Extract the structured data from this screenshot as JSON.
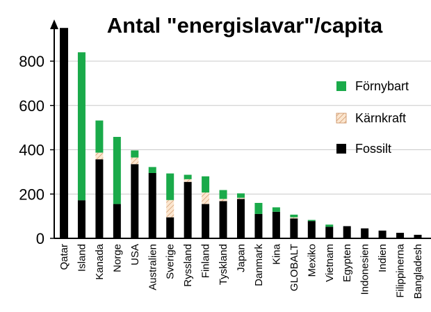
{
  "chart_data": {
    "type": "bar",
    "stacked": true,
    "title": "Antal \"energislavar\"/capita",
    "xlabel": "",
    "ylabel": "",
    "ylim": [
      0,
      950
    ],
    "yticks": [
      0,
      200,
      400,
      600,
      800
    ],
    "grid": true,
    "legend_position": "right",
    "categories": [
      "Qatar",
      "Island",
      "Kanada",
      "Norge",
      "USA",
      "Australien",
      "Sverige",
      "Ryssland",
      "Finland",
      "Tyskland",
      "Japan",
      "Danmark",
      "Kina",
      "GLOBALT",
      "Mexiko",
      "Vietnam",
      "Egypten",
      "Indonesien",
      "Indien",
      "Filippinerna",
      "Bangladesh"
    ],
    "series": [
      {
        "name": "Fossilt",
        "color": "#000000",
        "pattern": "solid",
        "values": [
          950,
          172,
          357,
          155,
          335,
          295,
          95,
          255,
          155,
          168,
          178,
          110,
          120,
          90,
          78,
          52,
          55,
          45,
          35,
          25,
          16
        ]
      },
      {
        "name": "Kärnkraft",
        "color": "#f5d7b8",
        "pattern": "hatch",
        "values": [
          0,
          0,
          30,
          0,
          30,
          0,
          78,
          12,
          52,
          10,
          5,
          0,
          0,
          5,
          0,
          0,
          0,
          0,
          0,
          0,
          0
        ]
      },
      {
        "name": "Förnybart",
        "color": "#1aaa4a",
        "pattern": "solid",
        "values": [
          0,
          668,
          145,
          303,
          32,
          27,
          120,
          20,
          73,
          40,
          20,
          50,
          20,
          12,
          5,
          10,
          0,
          0,
          0,
          0,
          0
        ]
      }
    ],
    "legend": [
      {
        "series": "Förnybart",
        "label": "Förnybart"
      },
      {
        "series": "Kärnkraft",
        "label": "Kärnkraft"
      },
      {
        "series": "Fossilt",
        "label": "Fossilt"
      }
    ]
  }
}
